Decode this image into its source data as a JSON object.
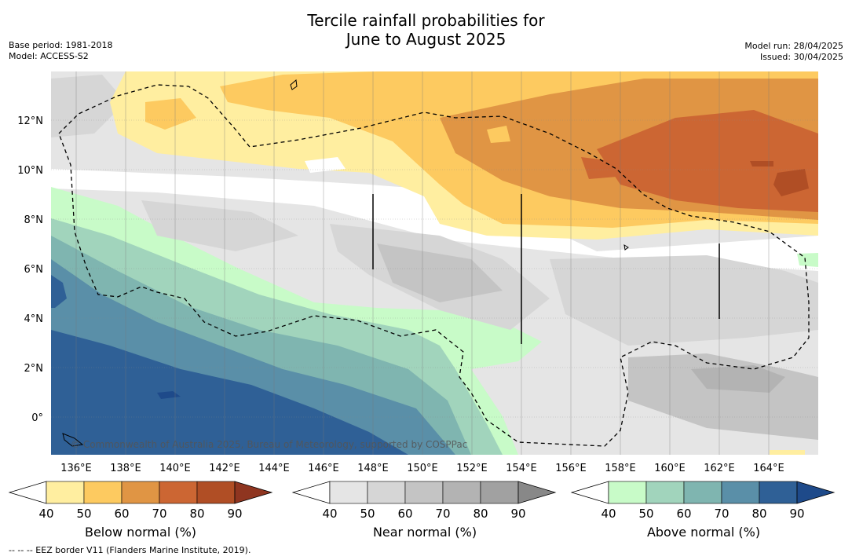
{
  "title_line1": "Tercile rainfall probabilities for",
  "title_line2": "June to August 2025",
  "meta_left": [
    "Base period: 1981-2018",
    "Model: ACCESS-S2"
  ],
  "meta_right": [
    "Model run: 28/04/2025",
    "Issued: 30/04/2025"
  ],
  "lon_labels": [
    "136°E",
    "138°E",
    "140°E",
    "142°E",
    "144°E",
    "146°E",
    "148°E",
    "150°E",
    "152°E",
    "154°E",
    "156°E",
    "158°E",
    "160°E",
    "162°E",
    "164°E"
  ],
  "lat_labels": [
    "12°N",
    "10°N",
    "8°N",
    "6°N",
    "4°N",
    "2°N",
    "0°"
  ],
  "copyright": "© Commonwealth of Australia 2025, Bureau of Meteorology, supported by COSPPac",
  "colorbars": [
    {
      "label": "Below normal (%)",
      "ticks": [
        "40",
        "50",
        "60",
        "70",
        "80",
        "90"
      ],
      "colors": [
        "#ffeea0",
        "#fdca60",
        "#e09544",
        "#cc6633",
        "#b04e25",
        "#8f3520"
      ]
    },
    {
      "label": "Near normal (%)",
      "ticks": [
        "40",
        "50",
        "60",
        "70",
        "80",
        "90"
      ],
      "colors": [
        "#e5e5e5",
        "#d6d6d6",
        "#c4c4c4",
        "#b3b3b3",
        "#a1a1a1",
        "#888888"
      ]
    },
    {
      "label": "Above normal (%)",
      "ticks": [
        "40",
        "50",
        "60",
        "70",
        "80",
        "90"
      ],
      "colors": [
        "#c8fbc8",
        "#a1d4bc",
        "#7fb5b0",
        "#5a8fa8",
        "#2f6096",
        "#1e4a8a"
      ]
    }
  ],
  "footnote": "--  --  -- EEZ border V11 (Flanders Marine Institute, 2019)."
}
